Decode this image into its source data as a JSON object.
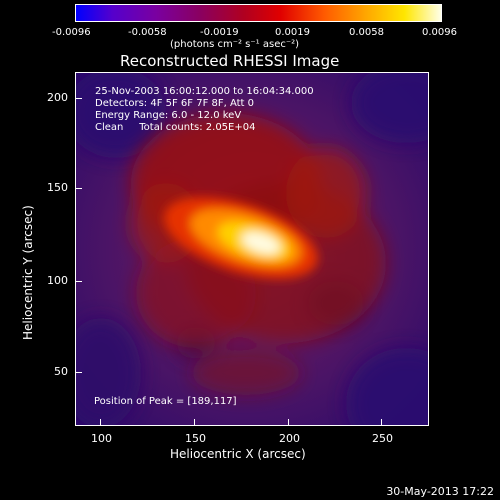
{
  "colorbar": {
    "ticks": [
      "-0.0096",
      "-0.0058",
      "-0.0019",
      "0.0019",
      "0.0058",
      "0.0096"
    ],
    "units": "(photons cm⁻² s⁻¹ asec⁻²)"
  },
  "title": "Reconstructed RHESSI Image",
  "info": {
    "line1": "25-Nov-2003 16:00:12.000 to 16:04:34.000",
    "line2": "Detectors: 4F 5F 6F 7F 8F, Att 0",
    "line3": "Energy Range: 6.0 - 12.0 keV",
    "line4": "Clean     Total counts: 2.05E+04"
  },
  "peak": "Position of Peak = [189,117]",
  "axes": {
    "xlabel": "Heliocentric X (arcsec)",
    "ylabel": "Heliocentric Y (arcsec)",
    "xticks": [
      "100",
      "150",
      "200",
      "250"
    ],
    "yticks": [
      "200",
      "150",
      "100",
      "50"
    ]
  },
  "date": "30-May-2013 17:22"
}
